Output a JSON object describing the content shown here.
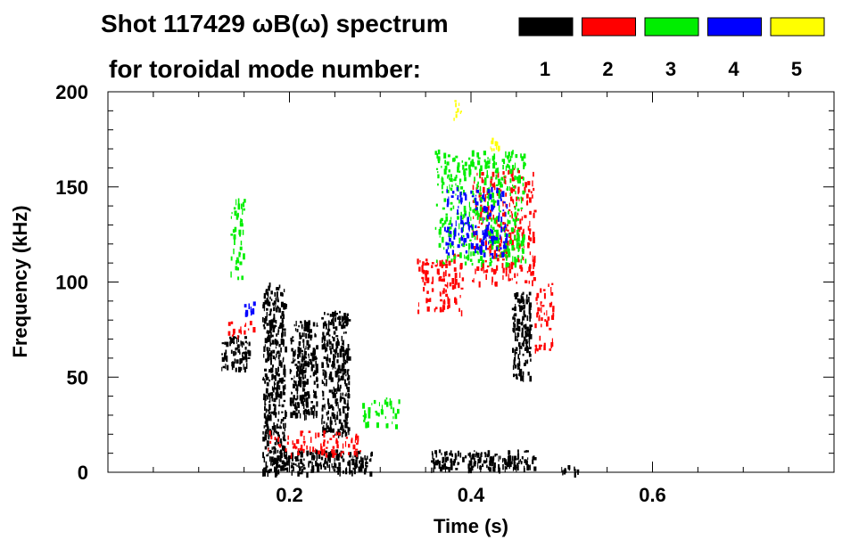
{
  "header": {
    "title": "Shot 117429 ωB(ω) spectrum",
    "subtitle": "for toroidal mode number:"
  },
  "legend": [
    {
      "label": "1",
      "color": "#000000"
    },
    {
      "label": "2",
      "color": "#ff0000"
    },
    {
      "label": "3",
      "color": "#00ee00"
    },
    {
      "label": "4",
      "color": "#0000ff"
    },
    {
      "label": "5",
      "color": "#ffff00"
    }
  ],
  "chart_data": {
    "type": "scatter",
    "xlabel": "Time (s)",
    "ylabel": "Frequency (kHz)",
    "xlim": [
      0.0,
      0.8
    ],
    "ylim": [
      0,
      200
    ],
    "xticks": [
      0.2,
      0.4,
      0.6
    ],
    "xtick_labels": [
      "0.2",
      "0.4",
      "0.6"
    ],
    "yticks": [
      0,
      50,
      100,
      150,
      200
    ],
    "ytick_labels": [
      "0",
      "50",
      "100",
      "150",
      "200"
    ],
    "grid": false,
    "legend_position": "top-right",
    "series": [
      {
        "name": "n=1",
        "color": "#000000",
        "clusters": [
          {
            "t": [
              0.125,
              0.155
            ],
            "f": [
              55,
              72
            ]
          },
          {
            "t": [
              0.17,
              0.195
            ],
            "f": [
              10,
              100
            ]
          },
          {
            "t": [
              0.2,
              0.23
            ],
            "f": [
              30,
              80
            ]
          },
          {
            "t": [
              0.235,
              0.265
            ],
            "f": [
              20,
              85
            ]
          },
          {
            "t": [
              0.17,
              0.29
            ],
            "f": [
              0,
              12
            ]
          },
          {
            "t": [
              0.355,
              0.47
            ],
            "f": [
              2,
              12
            ]
          },
          {
            "t": [
              0.445,
              0.465
            ],
            "f": [
              50,
              95
            ]
          },
          {
            "t": [
              0.5,
              0.52
            ],
            "f": [
              0,
              4
            ]
          }
        ]
      },
      {
        "name": "n=2",
        "color": "#ff0000",
        "clusters": [
          {
            "t": [
              0.13,
              0.16
            ],
            "f": [
              72,
              80
            ]
          },
          {
            "t": [
              0.175,
              0.28
            ],
            "f": [
              10,
              22
            ]
          },
          {
            "t": [
              0.34,
              0.39
            ],
            "f": [
              85,
              115
            ]
          },
          {
            "t": [
              0.4,
              0.47
            ],
            "f": [
              100,
              160
            ]
          },
          {
            "t": [
              0.47,
              0.49
            ],
            "f": [
              65,
              100
            ]
          }
        ]
      },
      {
        "name": "n=3",
        "color": "#00ee00",
        "clusters": [
          {
            "t": [
              0.135,
              0.15
            ],
            "f": [
              100,
              145
            ]
          },
          {
            "t": [
              0.28,
              0.32
            ],
            "f": [
              25,
              40
            ]
          },
          {
            "t": [
              0.36,
              0.46
            ],
            "f": [
              110,
              170
            ]
          }
        ]
      },
      {
        "name": "n=4",
        "color": "#0000ff",
        "clusters": [
          {
            "t": [
              0.15,
              0.16
            ],
            "f": [
              84,
              90
            ]
          },
          {
            "t": [
              0.37,
              0.44
            ],
            "f": [
              115,
              150
            ]
          }
        ]
      },
      {
        "name": "n=5",
        "color": "#ffff00",
        "clusters": [
          {
            "t": [
              0.38,
              0.39
            ],
            "f": [
              186,
              196
            ]
          },
          {
            "t": [
              0.42,
              0.43
            ],
            "f": [
              170,
              176
            ]
          }
        ]
      }
    ]
  }
}
